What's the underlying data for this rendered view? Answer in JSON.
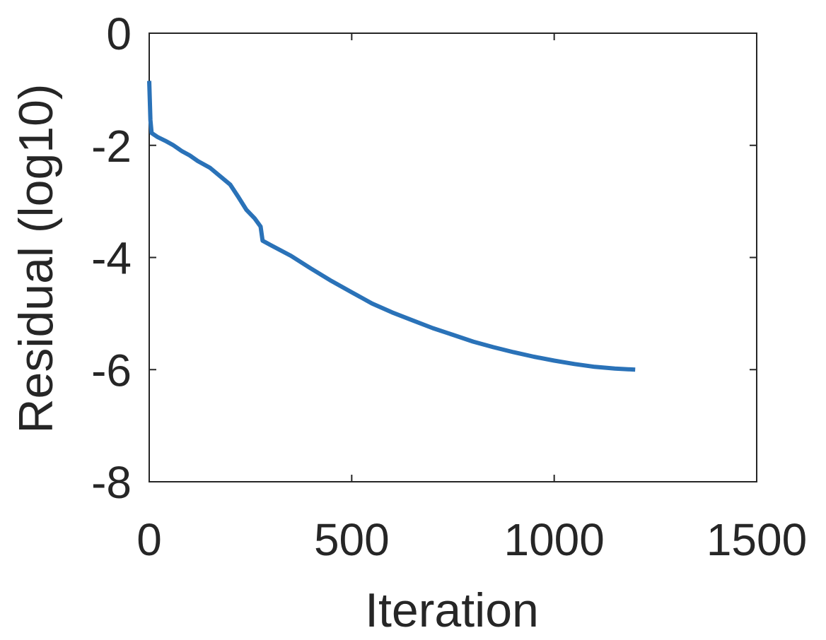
{
  "chart_data": {
    "type": "line",
    "title": "",
    "xlabel": "Iteration",
    "ylabel": "Residual (log10)",
    "xlim": [
      0,
      1500
    ],
    "ylim": [
      -8,
      0
    ],
    "xticks": [
      0,
      500,
      1000,
      1500
    ],
    "yticks": [
      0,
      -2,
      -4,
      -6,
      -8
    ],
    "xtick_labels": [
      "0",
      "500",
      "1000",
      "1500"
    ],
    "ytick_labels": [
      "0",
      "-2",
      "-4",
      "-6",
      "-8"
    ],
    "grid": false,
    "box": true,
    "series": [
      {
        "color": "#2a72b8",
        "x": [
          0,
          3,
          6,
          10,
          20,
          40,
          60,
          80,
          100,
          120,
          150,
          180,
          200,
          220,
          240,
          260,
          275,
          280,
          300,
          350,
          400,
          450,
          500,
          550,
          600,
          650,
          700,
          750,
          800,
          850,
          900,
          950,
          1000,
          1050,
          1100,
          1150,
          1200
        ],
        "y": [
          -0.85,
          -1.55,
          -1.78,
          -1.8,
          -1.85,
          -1.92,
          -2.0,
          -2.1,
          -2.18,
          -2.28,
          -2.4,
          -2.58,
          -2.7,
          -2.92,
          -3.15,
          -3.3,
          -3.45,
          -3.7,
          -3.78,
          -3.97,
          -4.2,
          -4.42,
          -4.62,
          -4.82,
          -4.98,
          -5.12,
          -5.26,
          -5.38,
          -5.5,
          -5.6,
          -5.69,
          -5.77,
          -5.84,
          -5.9,
          -5.95,
          -5.98,
          -6.0
        ]
      }
    ]
  }
}
